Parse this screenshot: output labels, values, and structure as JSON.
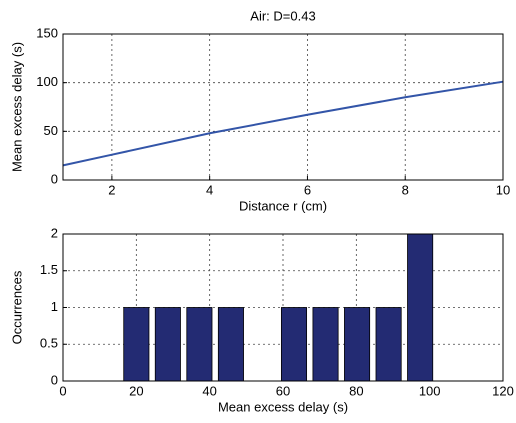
{
  "chart_data": [
    {
      "type": "line",
      "title": "Air: D=0.43",
      "x_label": "Distance r (cm)",
      "y_label": "Mean excess delay (s)",
      "x": [
        1,
        2,
        4,
        6,
        8,
        10
      ],
      "values": [
        15,
        26,
        48,
        67,
        85,
        101
      ],
      "color": "#3355a8",
      "xlim": [
        1,
        10
      ],
      "ylim": [
        0,
        150
      ],
      "xticks": [
        2,
        4,
        6,
        8,
        10
      ],
      "yticks": [
        0,
        50,
        100,
        150
      ],
      "grid": true
    },
    {
      "type": "histogram",
      "x_label": "Mean excess delay (s)",
      "y_label": "Occurrences",
      "bins": [
        15.7,
        24.3,
        32.9,
        41.5,
        50.1,
        58.7,
        67.3,
        75.9,
        84.5,
        93.1,
        101.7
      ],
      "values": [
        1,
        1,
        1,
        1,
        0,
        1,
        1,
        1,
        1,
        2
      ],
      "color": "#232b73",
      "xlim": [
        0,
        120
      ],
      "ylim": [
        0,
        2
      ],
      "xticks": [
        0,
        20,
        40,
        60,
        80,
        100,
        120
      ],
      "yticks": [
        0,
        0.5,
        1,
        1.5,
        2
      ],
      "grid": true
    }
  ]
}
